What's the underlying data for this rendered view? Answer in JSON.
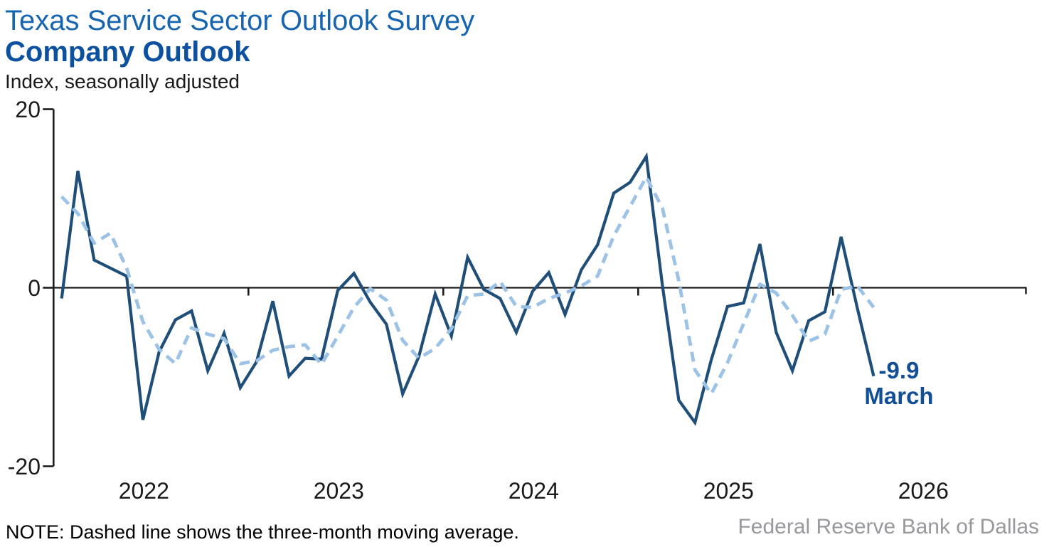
{
  "footnote": "NOTE: Dashed line shows the three-month moving average.",
  "source": "Federal Reserve Bank of Dallas",
  "colors": {
    "title": "#1765B0",
    "subtitle": "#0C51A0",
    "solid_line": "#1F4E79",
    "dashed_line": "#9CC2E6",
    "annotation": "#134F97",
    "axis": "#1C1C1C",
    "text": "#1A1A1A",
    "source_text": "#97999C"
  },
  "chart_data": {
    "type": "line",
    "title": "Texas Service Sector Outlook Survey",
    "subtitle": "Company Outlook",
    "ylabel": "Index, seasonally adjusted",
    "grid": false,
    "legend": "none",
    "ylim": [
      -20,
      20
    ],
    "yticks": {
      "values": [
        20,
        0,
        -20
      ],
      "labels": [
        "20",
        "0",
        "-20"
      ]
    },
    "xticks": {
      "year_labels": [
        "2022",
        "2023",
        "2024",
        "2025",
        "2026"
      ]
    },
    "x": [
      "Jan 2022",
      "Feb 2022",
      "Mar 2022",
      "Apr 2022",
      "May 2022",
      "Jun 2022",
      "Jul 2022",
      "Aug 2022",
      "Sep 2022",
      "Oct 2022",
      "Nov 2022",
      "Dec 2022",
      "Jan 2023",
      "Feb 2023",
      "Mar 2023",
      "Apr 2023",
      "May 2023",
      "Jun 2023",
      "Jul 2023",
      "Aug 2023",
      "Sep 2023",
      "Oct 2023",
      "Nov 2023",
      "Dec 2023",
      "Jan 2024",
      "Feb 2024",
      "Mar 2024",
      "Apr 2024",
      "May 2024",
      "Jun 2024",
      "Jul 2024",
      "Aug 2024",
      "Sep 2024",
      "Oct 2024",
      "Nov 2024",
      "Dec 2024",
      "Jan 2025",
      "Feb 2025",
      "Mar 2025",
      "Apr 2025",
      "May 2025",
      "Jun 2025",
      "Jul 2025",
      "Aug 2025",
      "Sep 2025",
      "Oct 2025",
      "Nov 2025",
      "Dec 2025",
      "Jan 2026",
      "Feb 2026",
      "Mar 2026"
    ],
    "series": [
      {
        "name": "Company Outlook index",
        "line_style": "solid",
        "color": "#1F4E79",
        "values": [
          -1.2,
          13.1,
          3.1,
          2.2,
          1.3,
          -14.8,
          -7.2,
          -3.6,
          -2.6,
          -9.3,
          -5.1,
          -11.2,
          -8.3,
          -1.5,
          -9.9,
          -7.9,
          -8.0,
          -0.3,
          1.6,
          -1.6,
          -4.1,
          -11.9,
          -7.7,
          -0.7,
          -5.4,
          3.4,
          -0.2,
          -1.2,
          -5.0,
          -0.4,
          1.7,
          -3.0,
          2.0,
          4.8,
          10.6,
          11.8,
          14.7,
          0.2,
          -12.6,
          -15.1,
          -8.1,
          -2.1,
          -1.7,
          4.9,
          -5.0,
          -9.3,
          -3.7,
          -2.7,
          5.7,
          -2.3,
          -9.9
        ]
      },
      {
        "name": "Three-month moving average",
        "line_style": "dashed",
        "color": "#9CC2E6",
        "values": [
          10.2,
          8.3,
          5.0,
          6.1,
          2.2,
          -3.8,
          -6.9,
          -8.5,
          -4.5,
          -5.2,
          -5.7,
          -8.5,
          -8.2,
          -7.0,
          -6.6,
          -6.4,
          -8.6,
          -5.4,
          -2.2,
          -0.1,
          -1.4,
          -5.9,
          -7.9,
          -6.8,
          -4.6,
          -0.9,
          -0.7,
          0.7,
          -2.1,
          -2.2,
          -1.2,
          -0.6,
          0.2,
          1.3,
          5.8,
          9.1,
          12.4,
          8.9,
          0.8,
          -9.2,
          -11.9,
          -8.4,
          -4.0,
          0.4,
          -0.6,
          -3.1,
          -6.0,
          -5.2,
          -0.2,
          0.2,
          -2.2
        ]
      }
    ],
    "annotation": {
      "value_label": "-9.9",
      "month_label": "March",
      "attached_to": "Mar 2026"
    }
  }
}
